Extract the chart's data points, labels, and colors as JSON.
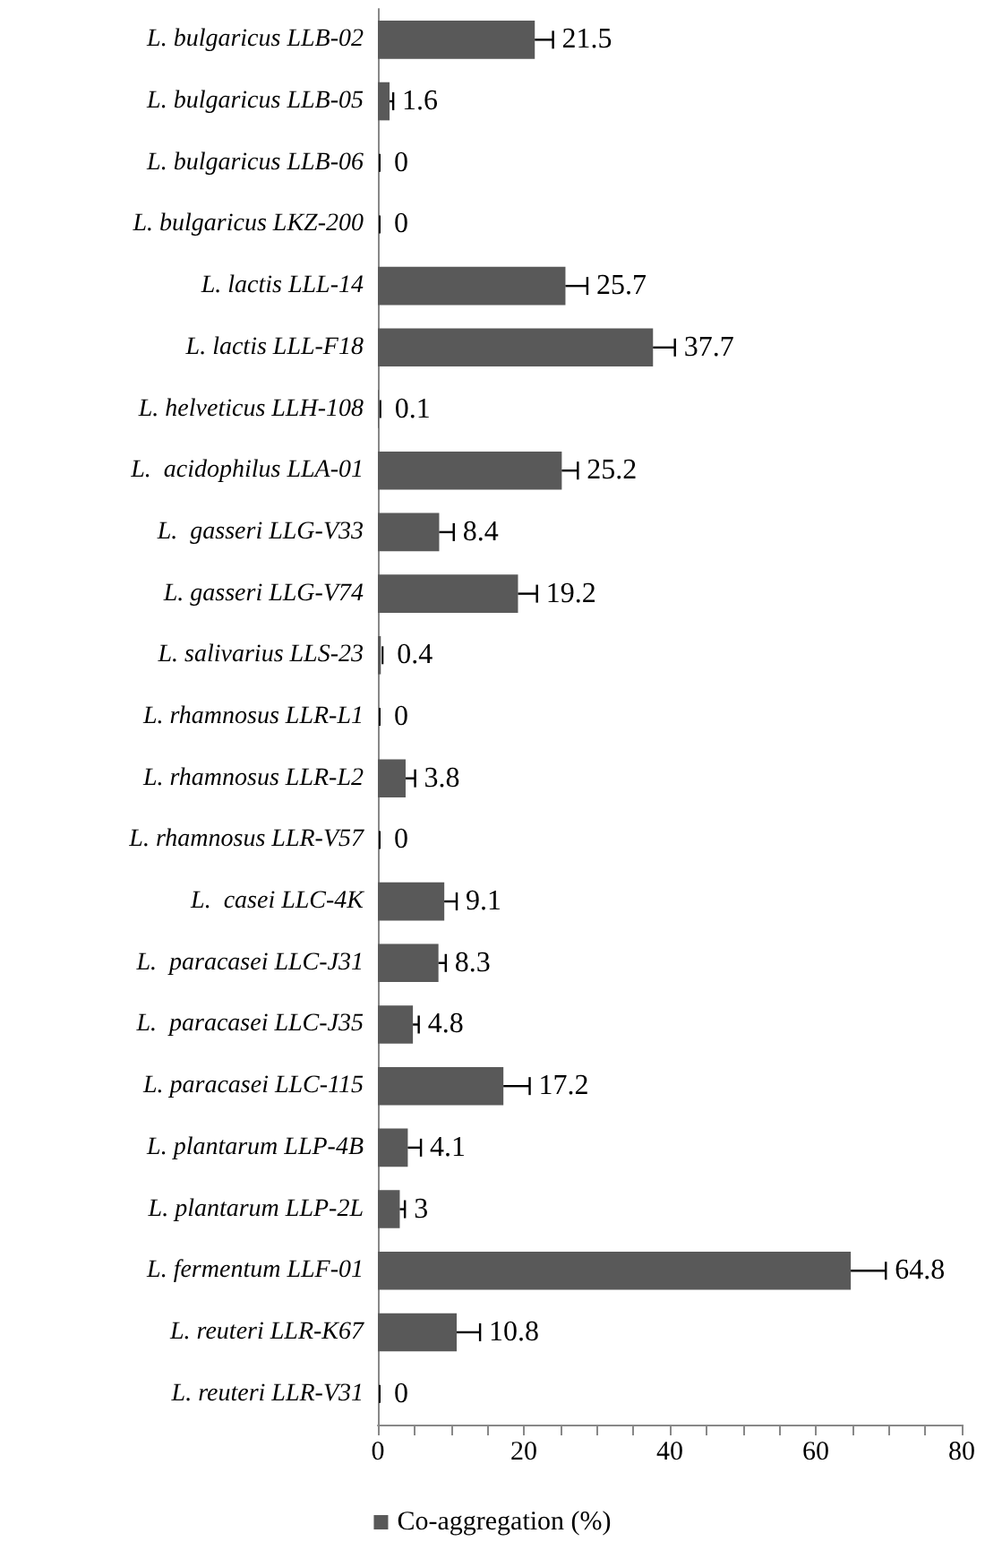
{
  "chart_data": {
    "type": "bar",
    "orientation": "horizontal",
    "categories": [
      "L. bulgaricus LLB-02",
      "L. bulgaricus LLB-05",
      "L. bulgaricus LLB-06",
      "L. bulgaricus LKZ-200",
      "L. lactis LLL-14",
      "L. lactis LLL-F18",
      "L. helveticus LLH-108",
      "L.  acidophilus LLA-01",
      "L.  gasseri LLG-V33",
      "L. gasseri LLG-V74",
      "L. salivarius LLS-23",
      "L. rhamnosus LLR-L1",
      "L. rhamnosus LLR-L2",
      "L. rhamnosus LLR-V57",
      "L.  casei LLC-4K",
      "L.  paracasei LLC-J31",
      "L.  paracasei LLC-J35",
      "L. paracasei LLC-115",
      "L. plantarum LLP-4B",
      "L. plantarum LLP-2L",
      "L. fermentum LLF-01",
      "L. reuteri LLR-K67",
      "L. reuteri LLR-V31"
    ],
    "series": [
      {
        "name": "Co-aggregation (%)",
        "color": "#595959",
        "values": [
          21.5,
          1.6,
          0,
          0,
          25.7,
          37.7,
          0.1,
          25.2,
          8.4,
          19.2,
          0.4,
          0,
          3.8,
          0,
          9.1,
          8.3,
          4.8,
          17.2,
          4.1,
          3,
          64.8,
          10.8,
          0
        ],
        "errors": [
          2.5,
          0.5,
          null,
          null,
          3,
          3,
          null,
          2.2,
          2,
          2.6,
          null,
          null,
          1.3,
          null,
          1.7,
          1,
          0.8,
          3.6,
          1.8,
          0.7,
          4.8,
          3.2,
          null
        ]
      }
    ],
    "xlim": [
      0,
      80
    ],
    "xticks": [
      0,
      20,
      40,
      60,
      80
    ],
    "data_labels": true,
    "legend": "bottom",
    "grid": false
  }
}
